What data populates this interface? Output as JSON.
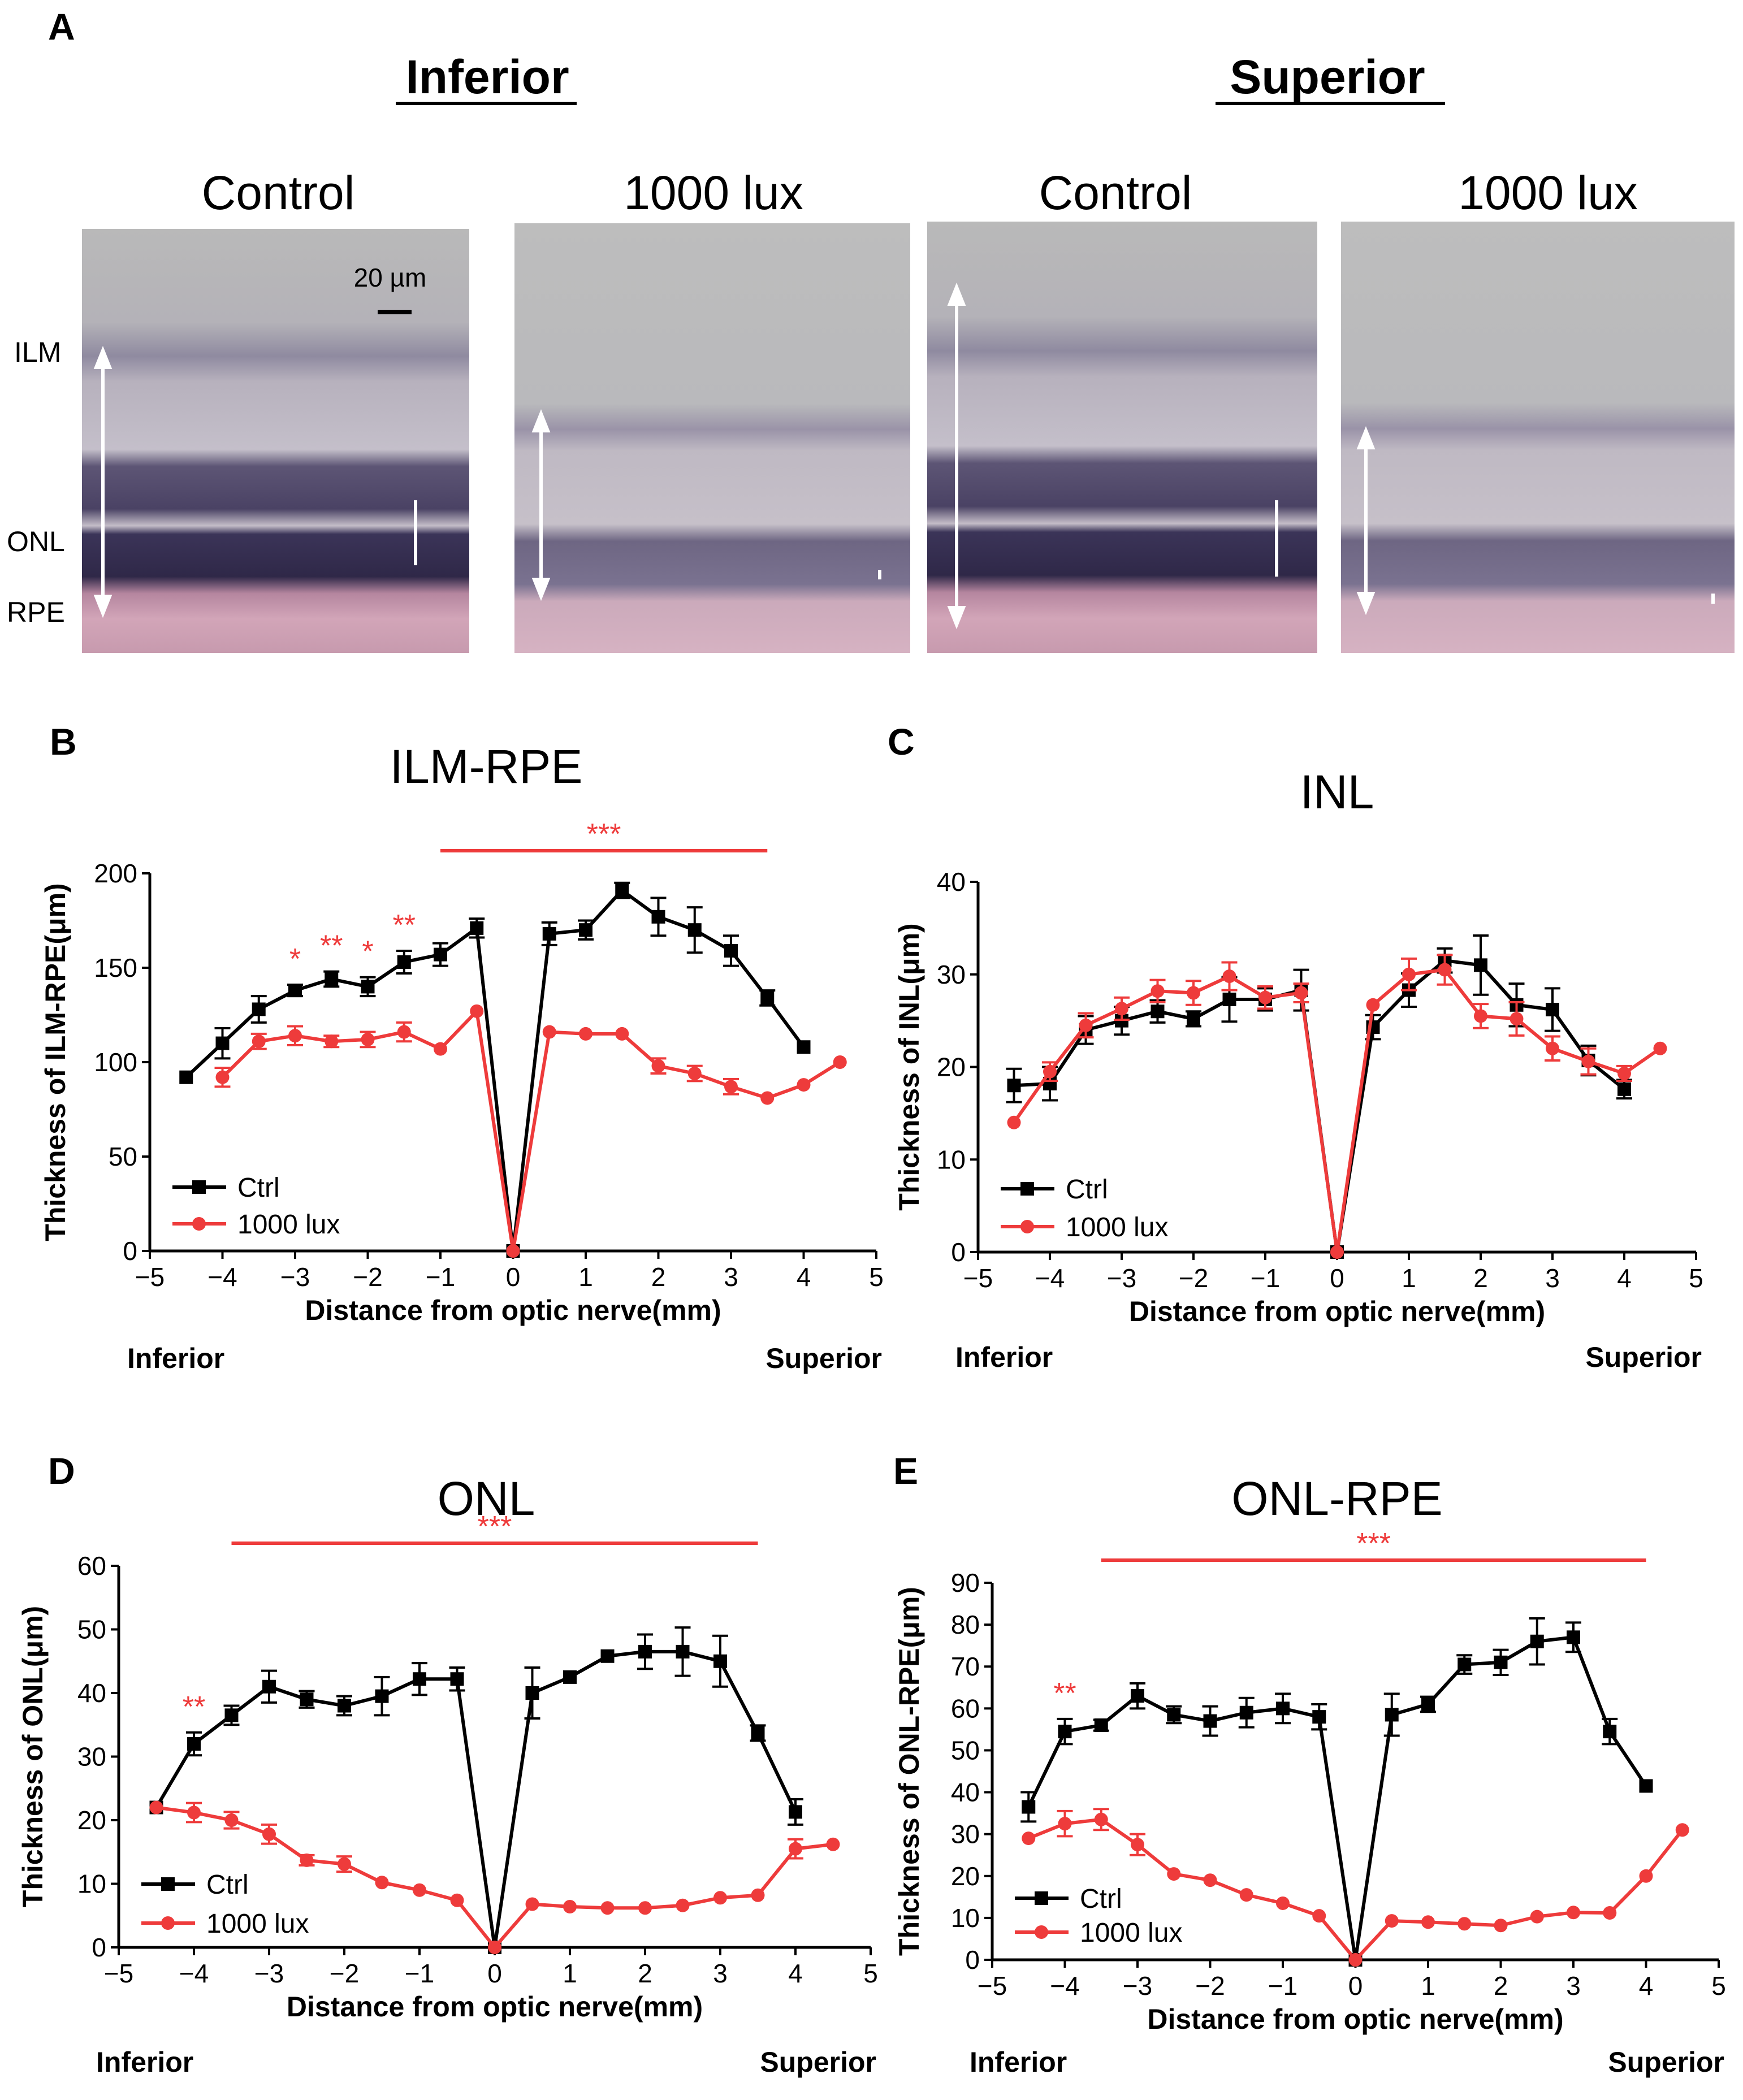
{
  "panel_a": {
    "letter": "A",
    "regions": [
      "Inferior",
      "Superior"
    ],
    "images": [
      {
        "label": "Control",
        "region": "inferior"
      },
      {
        "label": "1000 lux",
        "region": "inferior"
      },
      {
        "label": "Control",
        "region": "superior"
      },
      {
        "label": "1000 lux",
        "region": "superior"
      }
    ],
    "scale_bar": "20 µm",
    "layer_labels": [
      "ILM",
      "ONL",
      "RPE"
    ]
  },
  "colors": {
    "ctrl": "#000000",
    "lux": "#ee3b3b"
  },
  "chart_data": [
    {
      "panel": "B",
      "type": "line",
      "title": "ILM-RPE",
      "xlabel": "Distance from optic nerve(mm)",
      "ylabel": "Thickness of ILM-RPE(μm)",
      "xlim": [
        -5,
        5
      ],
      "ylim": [
        0,
        200
      ],
      "xticks": [
        -5,
        -4,
        -3,
        -2,
        -1,
        0,
        1,
        2,
        3,
        4,
        5
      ],
      "xtick_labels": [
        "−5",
        "−4",
        "−3",
        "−2",
        "−1",
        "0",
        "1",
        "2",
        "3",
        "4",
        "5"
      ],
      "yticks": [
        0,
        50,
        100,
        150,
        200
      ],
      "ytick_labels": [
        "0",
        "50",
        "100",
        "150",
        "200"
      ],
      "side_labels": [
        "Inferior",
        "Superior"
      ],
      "legend": [
        "Ctrl",
        "1000 lux"
      ],
      "series": [
        {
          "name": "Ctrl",
          "color": "#000000",
          "marker": "square",
          "x": [
            -4.5,
            -4,
            -3.5,
            -3,
            -2.5,
            -2,
            -1.5,
            -1,
            -0.5,
            0,
            0.5,
            1,
            1.5,
            2,
            2.5,
            3,
            3.5,
            4
          ],
          "y": [
            92,
            110,
            128,
            138,
            144,
            140,
            153,
            157,
            171,
            0,
            168,
            170,
            191,
            177,
            170,
            159,
            134,
            108
          ],
          "err": [
            0,
            8,
            7,
            3,
            4,
            5,
            6,
            6,
            5,
            0,
            6,
            5,
            4,
            10,
            12,
            8,
            4,
            0
          ]
        },
        {
          "name": "1000 lux",
          "color": "#ee3b3b",
          "marker": "circle",
          "x": [
            -4,
            -3.5,
            -3,
            -2.5,
            -2,
            -1.5,
            -1,
            -0.5,
            0,
            0.5,
            1,
            1.5,
            2,
            2.5,
            3,
            3.5,
            4,
            4.5
          ],
          "y": [
            92,
            111,
            114,
            111,
            112,
            116,
            107,
            127,
            0,
            116,
            115,
            115,
            98,
            94,
            87,
            81,
            88,
            100
          ],
          "err": [
            5,
            4,
            5,
            3,
            4,
            5,
            0,
            0,
            0,
            0,
            0,
            0,
            4,
            4,
            4,
            0,
            0,
            0
          ]
        }
      ],
      "significance": [
        {
          "text": "*",
          "x": -3
        },
        {
          "text": "**",
          "x": -2.5
        },
        {
          "text": "*",
          "x": -2
        },
        {
          "text": "**",
          "x": -1.5
        }
      ],
      "bars": [
        {
          "x1": -1,
          "x2": 3.5,
          "text": "***"
        }
      ]
    },
    {
      "panel": "C",
      "type": "line",
      "title": "INL",
      "xlabel": "Distance from optic nerve(mm)",
      "ylabel": "Thickness of INL(μm)",
      "xlim": [
        -5,
        5
      ],
      "ylim": [
        0,
        40
      ],
      "xticks": [
        -5,
        -4,
        -3,
        -2,
        -1,
        0,
        1,
        2,
        3,
        4,
        5
      ],
      "xtick_labels": [
        "−5",
        "−4",
        "−3",
        "−2",
        "−1",
        "0",
        "1",
        "2",
        "3",
        "4",
        "5"
      ],
      "yticks": [
        0,
        10,
        20,
        30,
        40
      ],
      "ytick_labels": [
        "0",
        "10",
        "20",
        "30",
        "40"
      ],
      "side_labels": [
        "Inferior",
        "Superior"
      ],
      "legend": [
        "Ctrl",
        "1000 lux"
      ],
      "series": [
        {
          "name": "Ctrl",
          "color": "#000000",
          "marker": "square",
          "x": [
            -4.5,
            -4,
            -3.5,
            -3,
            -2.5,
            -2,
            -1.5,
            -1,
            -0.5,
            0,
            0.5,
            1,
            1.5,
            2,
            2.5,
            3,
            3.5,
            4
          ],
          "y": [
            18,
            18.2,
            24,
            25,
            26,
            25.2,
            27.3,
            27.3,
            28.3,
            0,
            24.3,
            28.3,
            31.5,
            31,
            26.7,
            26.2,
            20.7,
            17.6
          ],
          "err": [
            1.8,
            1.8,
            1.5,
            1.5,
            1.2,
            0.8,
            2.4,
            1.2,
            2.2,
            0,
            1.3,
            1.8,
            1.3,
            3.2,
            2.3,
            2.3,
            1.6,
            1
          ]
        },
        {
          "name": "1000 lux",
          "color": "#ee3b3b",
          "marker": "circle",
          "x": [
            -4.5,
            -4,
            -3.5,
            -3,
            -2.5,
            -2,
            -1.5,
            -1,
            -0.5,
            0,
            0.5,
            1,
            1.5,
            2,
            2.5,
            3,
            3.5,
            4,
            4.5
          ],
          "y": [
            14,
            19.5,
            24.5,
            26.3,
            28.2,
            28,
            29.8,
            27.5,
            28,
            0,
            26.7,
            30,
            30.5,
            25.5,
            25.2,
            22,
            20.6,
            19.3,
            22
          ],
          "err": [
            0,
            1,
            1.3,
            1.2,
            1.2,
            1.3,
            1.5,
            1.2,
            1,
            0,
            0,
            1.7,
            1.6,
            1.3,
            1.8,
            1.3,
            1.4,
            0.8,
            0
          ]
        }
      ],
      "significance": [],
      "bars": []
    },
    {
      "panel": "D",
      "type": "line",
      "title": "ONL",
      "xlabel": "Distance from optic nerve(mm)",
      "ylabel": "Thickness of ONL(μm)",
      "xlim": [
        -5,
        5
      ],
      "ylim": [
        0,
        60
      ],
      "xticks": [
        -5,
        -4,
        -3,
        -2,
        -1,
        0,
        1,
        2,
        3,
        4,
        5
      ],
      "xtick_labels": [
        "−5",
        "−4",
        "−3",
        "−2",
        "−1",
        "0",
        "1",
        "2",
        "3",
        "4",
        "5"
      ],
      "yticks": [
        0,
        10,
        20,
        30,
        40,
        50,
        60
      ],
      "ytick_labels": [
        "0",
        "10",
        "20",
        "30",
        "40",
        "50",
        "60"
      ],
      "side_labels": [
        "Inferior",
        "Superior"
      ],
      "legend": [
        "Ctrl",
        "1000 lux"
      ],
      "series": [
        {
          "name": "Ctrl",
          "color": "#000000",
          "marker": "square",
          "x": [
            -4.5,
            -4,
            -3.5,
            -3,
            -2.5,
            -2,
            -1.5,
            -1,
            -0.5,
            0,
            0.5,
            1,
            1.5,
            2,
            2.5,
            3,
            3.5,
            4
          ],
          "y": [
            22,
            32,
            36.5,
            41,
            39,
            38,
            39.5,
            42.2,
            42.2,
            0,
            40,
            42.5,
            45.8,
            46.5,
            46.5,
            45,
            33.7,
            21.3
          ],
          "err": [
            0,
            1.8,
            1.5,
            2.5,
            1.3,
            1.5,
            3,
            2.5,
            1.8,
            0,
            4,
            0,
            0,
            2.7,
            3.8,
            4,
            1.2,
            2
          ]
        },
        {
          "name": "1000 lux",
          "color": "#ee3b3b",
          "marker": "circle",
          "x": [
            -4.5,
            -4,
            -3.5,
            -3,
            -2.5,
            -2,
            -1.5,
            -1,
            -0.5,
            0,
            0.5,
            1,
            1.5,
            2,
            2.5,
            3,
            3.5,
            4,
            4.5
          ],
          "y": [
            22,
            21.2,
            20,
            17.8,
            13.7,
            13.1,
            10.2,
            9,
            7.4,
            0,
            6.8,
            6.4,
            6.2,
            6.2,
            6.6,
            7.8,
            8.2,
            15.5,
            16.2
          ],
          "err": [
            0,
            1.5,
            1.3,
            1.5,
            0.8,
            1.2,
            0,
            0,
            0,
            0,
            0,
            0,
            0,
            0,
            0,
            0,
            0,
            1.5,
            0
          ]
        }
      ],
      "significance": [
        {
          "text": "**",
          "x": -4
        }
      ],
      "bars": [
        {
          "x1": -3.5,
          "x2": 3.5,
          "text": "***"
        }
      ]
    },
    {
      "panel": "E",
      "type": "line",
      "title": "ONL-RPE",
      "xlabel": "Distance from optic nerve(mm)",
      "ylabel": "Thickness of ONL-RPE(μm)",
      "xlim": [
        -5,
        5
      ],
      "ylim": [
        0,
        90
      ],
      "xticks": [
        -5,
        -4,
        -3,
        -2,
        -1,
        0,
        1,
        2,
        3,
        4,
        5
      ],
      "xtick_labels": [
        "−5",
        "−4",
        "−3",
        "−2",
        "−1",
        "0",
        "1",
        "2",
        "3",
        "4",
        "5"
      ],
      "yticks": [
        0,
        10,
        20,
        30,
        40,
        50,
        60,
        70,
        80,
        90
      ],
      "ytick_labels": [
        "0",
        "10",
        "20",
        "30",
        "40",
        "50",
        "60",
        "70",
        "80",
        "90"
      ],
      "side_labels": [
        "Inferior",
        "Superior"
      ],
      "legend": [
        "Ctrl",
        "1000 lux"
      ],
      "series": [
        {
          "name": "Ctrl",
          "color": "#000000",
          "marker": "square",
          "x": [
            -4.5,
            -4,
            -3.5,
            -3,
            -2.5,
            -2,
            -1.5,
            -1,
            -0.5,
            0,
            0.5,
            1,
            1.5,
            2,
            2.5,
            3,
            3.5,
            4
          ],
          "y": [
            36.5,
            54.5,
            56,
            63,
            58.5,
            57,
            59,
            60,
            58,
            0,
            58.5,
            61,
            70.5,
            71,
            76,
            77,
            54.5,
            41.5
          ],
          "err": [
            3.5,
            3,
            1.3,
            3,
            2,
            3.5,
            3.5,
            3.5,
            3,
            0,
            5,
            1.8,
            2.2,
            3,
            5.5,
            3.5,
            3,
            0
          ]
        },
        {
          "name": "1000 lux",
          "color": "#ee3b3b",
          "marker": "circle",
          "x": [
            -4.5,
            -4,
            -3.5,
            -3,
            -2.5,
            -2,
            -1.5,
            -1,
            -0.5,
            0,
            0.5,
            1,
            1.5,
            2,
            2.5,
            3,
            3.5,
            4,
            4.5
          ],
          "y": [
            29,
            32.5,
            33.5,
            27.5,
            20.5,
            19,
            15.5,
            13.5,
            10.5,
            0,
            9.3,
            9,
            8.6,
            8.2,
            10.3,
            11.3,
            11.2,
            20,
            31
          ],
          "err": [
            0,
            3,
            2.5,
            2.5,
            0,
            0,
            0,
            0,
            0,
            0,
            0,
            0,
            0,
            0,
            0,
            0,
            0,
            0,
            0
          ]
        }
      ],
      "significance": [
        {
          "text": "**",
          "x": -4
        }
      ],
      "bars": [
        {
          "x1": -3.5,
          "x2": 4,
          "text": "***"
        }
      ]
    }
  ]
}
